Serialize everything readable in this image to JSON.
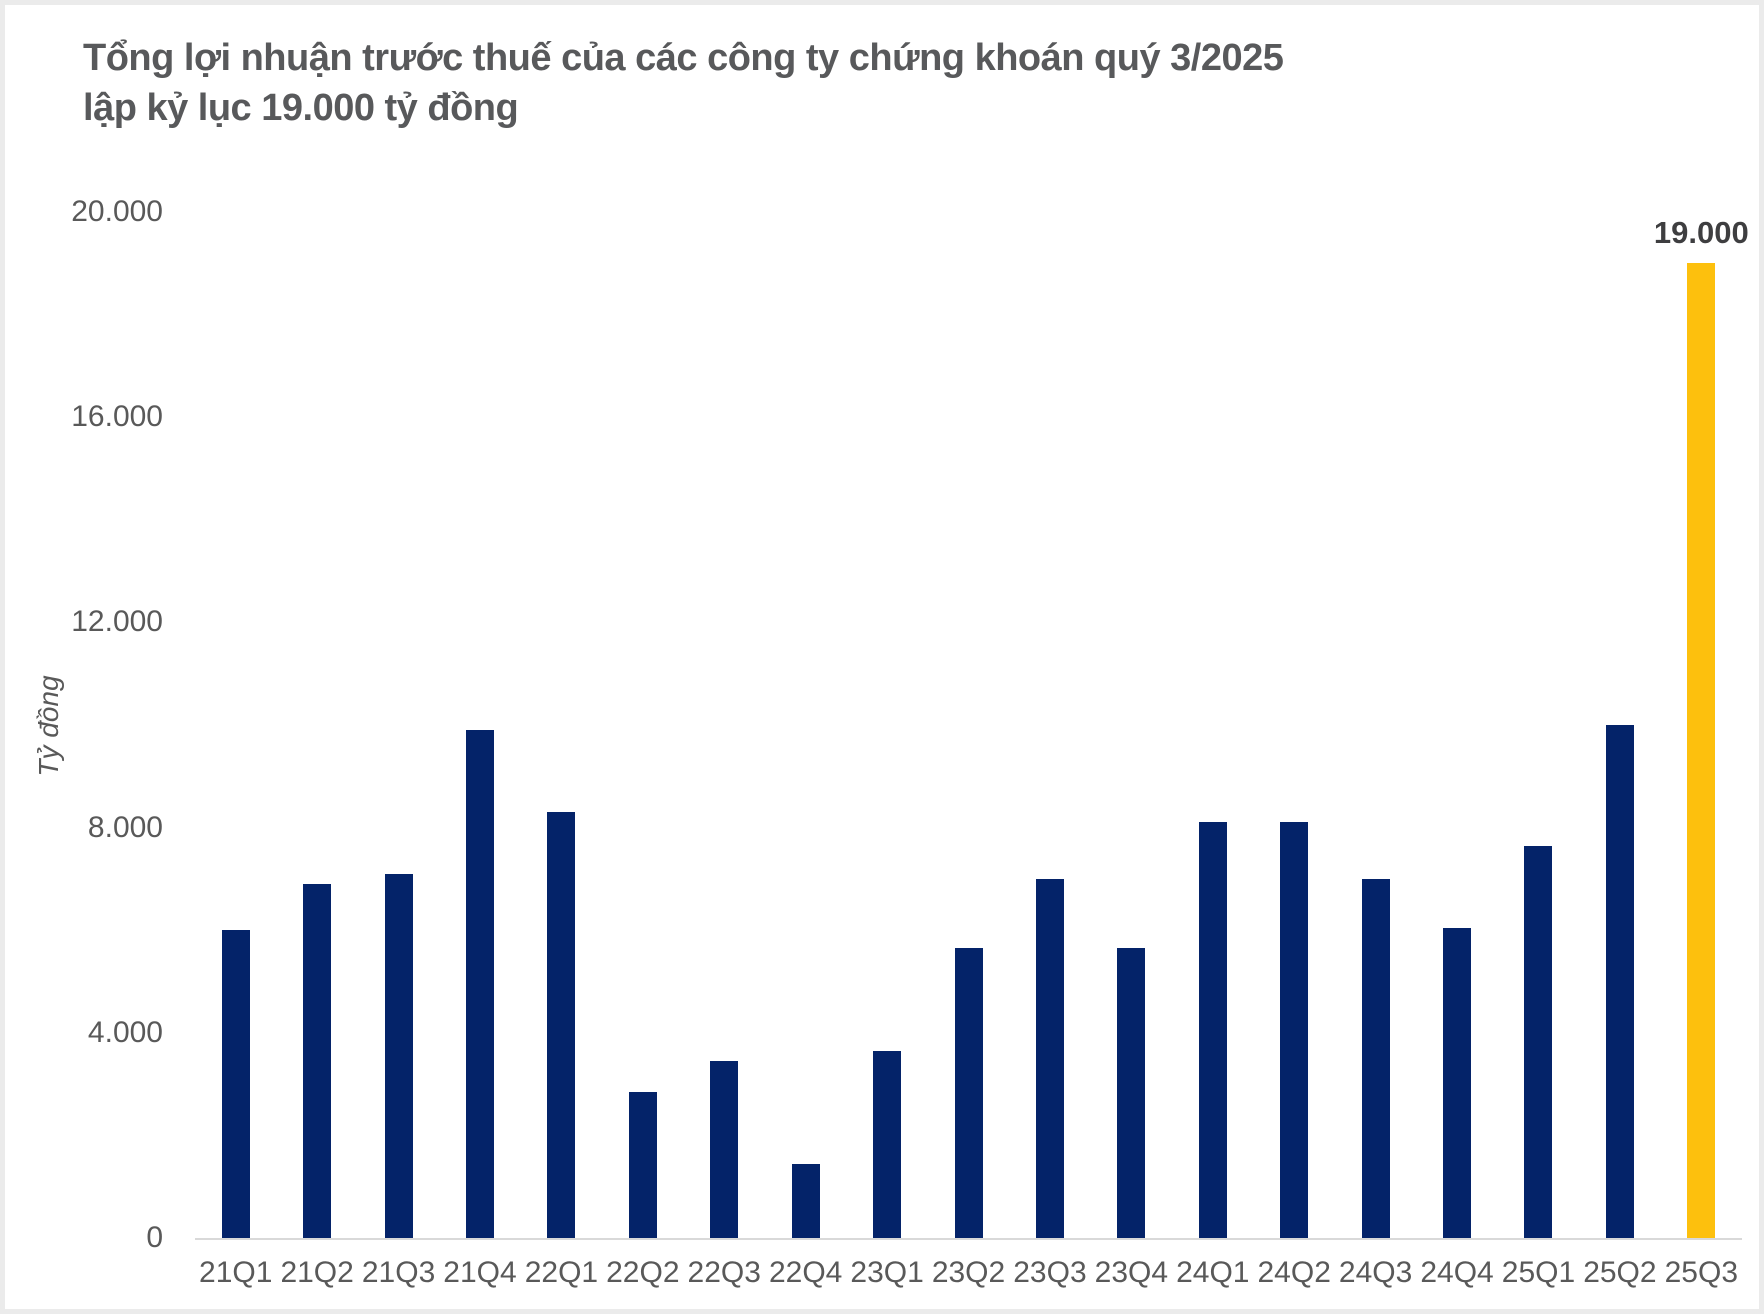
{
  "chart_data": {
    "type": "bar",
    "title_lines": [
      "Tổng lợi nhuận trước thuế của các công ty chứng khoán quý 3/2025",
      "lập kỷ lục 19.000 tỷ đồng"
    ],
    "ylabel": "Tỷ đồng",
    "categories": [
      "21Q1",
      "21Q2",
      "21Q3",
      "21Q4",
      "22Q1",
      "22Q2",
      "22Q3",
      "22Q4",
      "23Q1",
      "23Q2",
      "23Q3",
      "23Q4",
      "24Q1",
      "24Q2",
      "24Q3",
      "24Q4",
      "25Q1",
      "25Q2",
      "25Q3"
    ],
    "values": [
      6000,
      6900,
      7100,
      9900,
      8300,
      2850,
      3450,
      1450,
      3650,
      5650,
      7000,
      5650,
      8100,
      8100,
      7000,
      6050,
      7650,
      10000,
      19000
    ],
    "ylim": [
      0,
      20000
    ],
    "yticks": [
      {
        "label": "20.000",
        "value": 20000
      },
      {
        "label": "16.000",
        "value": 16000
      },
      {
        "label": "12.000",
        "value": 12000
      },
      {
        "label": "8.000",
        "value": 8000
      },
      {
        "label": "4.000",
        "value": 4000
      },
      {
        "label": "0",
        "value": 0
      }
    ],
    "grid": false,
    "legend": false,
    "highlight_index": 18,
    "annotation": {
      "label": "19.000",
      "category": "25Q3"
    },
    "colors": {
      "bar": "#042369",
      "highlight": "#fdc00d",
      "title_text": "#58595b",
      "tick_text": "#595959",
      "annotation_text": "#3e3e40",
      "axis_line": "#d9d9d9",
      "card_border": "#ebebeb"
    }
  }
}
